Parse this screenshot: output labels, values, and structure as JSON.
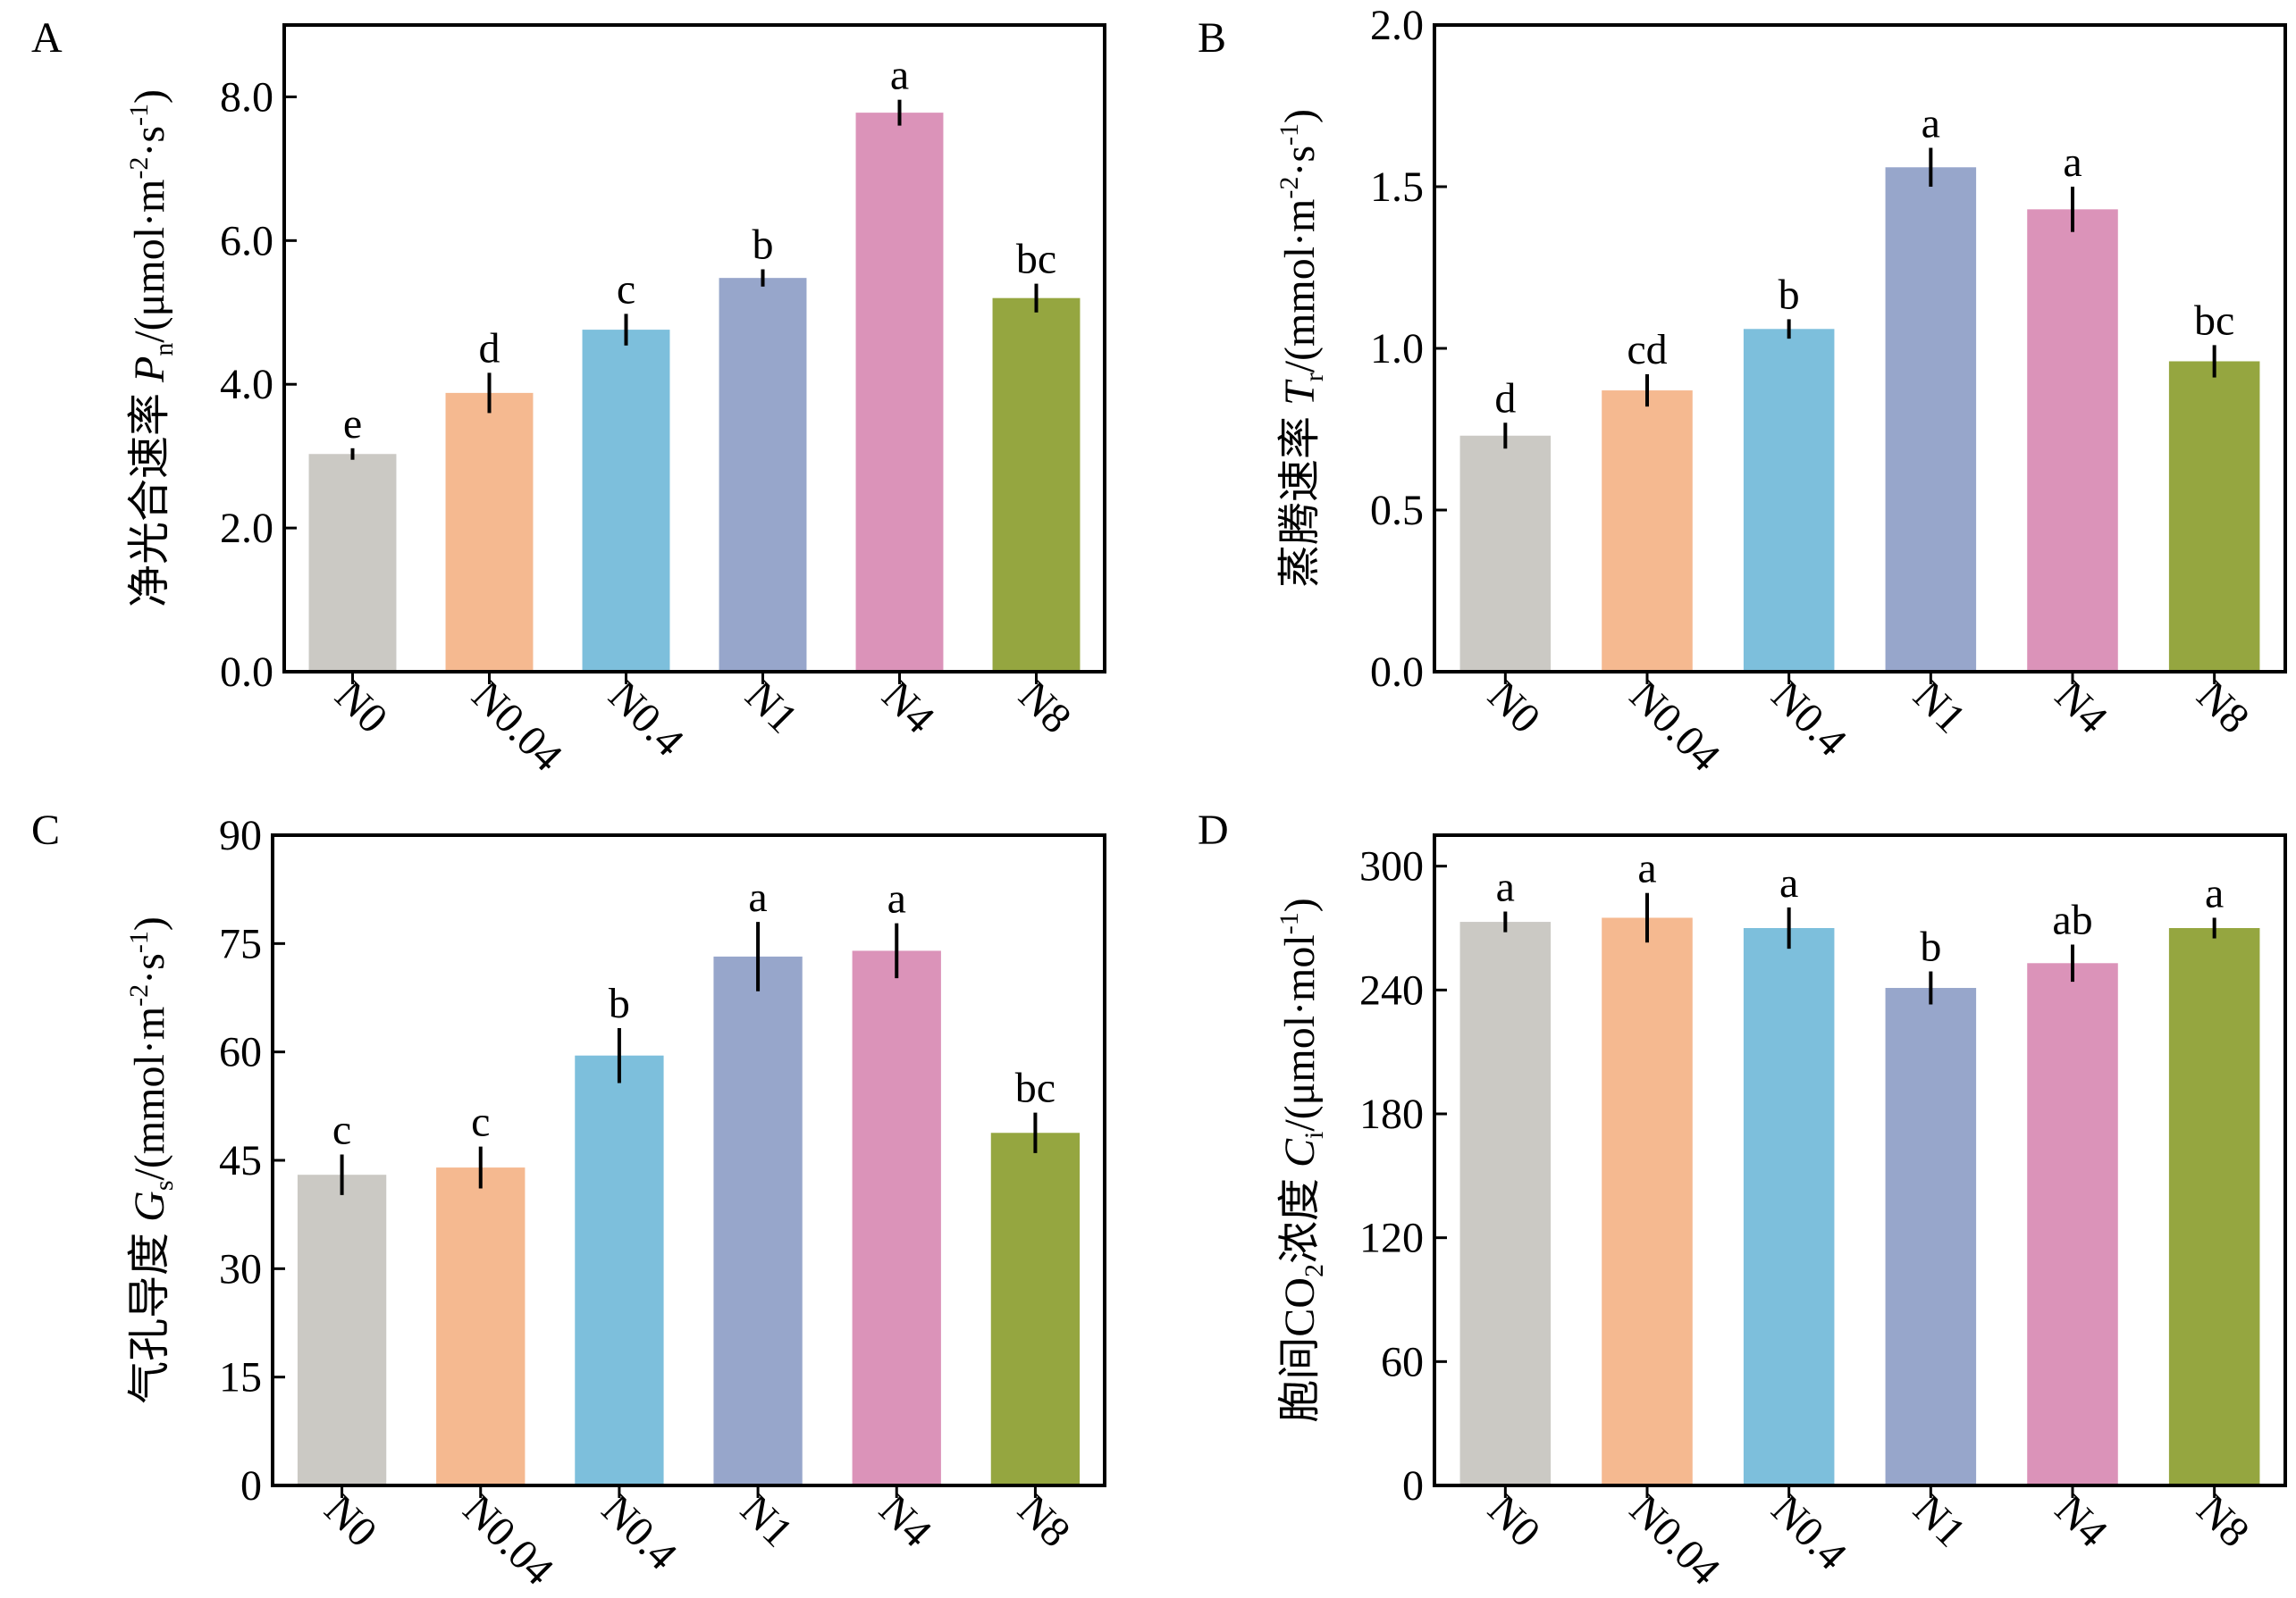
{
  "figure": {
    "categories": [
      "N0",
      "N0.04",
      "N0.4",
      "N1",
      "N4",
      "N8"
    ],
    "bar_colors": [
      "#cbc9c4",
      "#f5b990",
      "#7dbfdc",
      "#97a6cb",
      "#db93b9",
      "#95a640"
    ]
  },
  "chart_data": [
    {
      "type": "bar",
      "panel_label": "A",
      "ylabel": "净光合速率 Pn/(μmol·m-2·s-1)",
      "ylabel_parts": {
        "cn": "净光合速率 ",
        "sym": "P",
        "sub": "n",
        "unit_open": "/(μmol·m",
        "exp1": "-2",
        "mid": "·s",
        "exp2": "-1",
        "close": ")"
      },
      "categories": [
        "N0",
        "N0.04",
        "N0.4",
        "N1",
        "N4",
        "N8"
      ],
      "values": [
        3.03,
        3.88,
        4.76,
        5.48,
        7.78,
        5.2
      ],
      "errors": [
        0.08,
        0.28,
        0.22,
        0.12,
        0.18,
        0.2
      ],
      "letters": [
        "e",
        "d",
        "c",
        "b",
        "a",
        "bc"
      ],
      "ylim": [
        0,
        9
      ],
      "yticks": [
        0,
        2,
        4,
        6,
        8
      ],
      "ytick_labels": [
        "0.0",
        "2.0",
        "4.0",
        "6.0",
        "8.0"
      ]
    },
    {
      "type": "bar",
      "panel_label": "B",
      "ylabel": "蒸腾速率 Tr/(mmol·m-2·s-1)",
      "ylabel_parts": {
        "cn": "蒸腾速率 ",
        "sym": "T",
        "sub": "r",
        "unit_open": "/(mmol·m",
        "exp1": "-2",
        "mid": "·s",
        "exp2": "-1",
        "close": ")"
      },
      "categories": [
        "N0",
        "N0.04",
        "N0.4",
        "N1",
        "N4",
        "N8"
      ],
      "values": [
        0.73,
        0.87,
        1.06,
        1.56,
        1.43,
        0.96
      ],
      "errors": [
        0.04,
        0.05,
        0.03,
        0.06,
        0.07,
        0.05
      ],
      "letters": [
        "d",
        "cd",
        "b",
        "a",
        "a",
        "bc"
      ],
      "ylim": [
        0,
        2
      ],
      "yticks": [
        0,
        0.5,
        1,
        1.5,
        2
      ],
      "ytick_labels": [
        "0.0",
        "0.5",
        "1.0",
        "1.5",
        "2.0"
      ]
    },
    {
      "type": "bar",
      "panel_label": "C",
      "ylabel": "气孔导度 Gs/(mmol·m-2·s-1)",
      "ylabel_parts": {
        "cn": "气孔导度 ",
        "sym": "G",
        "sub": "s",
        "unit_open": "/(mmol·m",
        "exp1": "-2",
        "mid": "·s",
        "exp2": "-1",
        "close": ")"
      },
      "categories": [
        "N0",
        "N0.04",
        "N0.4",
        "N1",
        "N4",
        "N8"
      ],
      "values": [
        43.0,
        44.0,
        59.5,
        73.2,
        74.0,
        48.8
      ],
      "errors": [
        2.8,
        2.9,
        3.8,
        4.8,
        3.8,
        2.8
      ],
      "letters": [
        "c",
        "c",
        "b",
        "a",
        "a",
        "bc"
      ],
      "ylim": [
        0,
        90
      ],
      "yticks": [
        0,
        15,
        30,
        45,
        60,
        75,
        90
      ],
      "ytick_labels": [
        "0",
        "15",
        "30",
        "45",
        "60",
        "75",
        "90"
      ]
    },
    {
      "type": "bar",
      "panel_label": "D",
      "ylabel": "胞间CO2浓度 Ci/(μmol·mol-1)",
      "ylabel_parts": {
        "cn": "胞间CO",
        "cn_sub": "2",
        "cn2": "浓度 ",
        "sym": "C",
        "sub": "i",
        "unit_open": "/(μmol·mol",
        "exp1": "-1",
        "close": ")"
      },
      "categories": [
        "N0",
        "N0.04",
        "N0.4",
        "N1",
        "N4",
        "N8"
      ],
      "values": [
        273,
        275,
        270,
        241,
        253,
        270
      ],
      "errors": [
        5,
        12,
        10,
        8,
        9,
        5
      ],
      "letters": [
        "a",
        "a",
        "a",
        "b",
        "ab",
        "a"
      ],
      "ylim": [
        0,
        315
      ],
      "yticks": [
        0,
        60,
        120,
        180,
        240,
        300
      ],
      "ytick_labels": [
        "0",
        "60",
        "120",
        "180",
        "240",
        "300"
      ]
    }
  ]
}
